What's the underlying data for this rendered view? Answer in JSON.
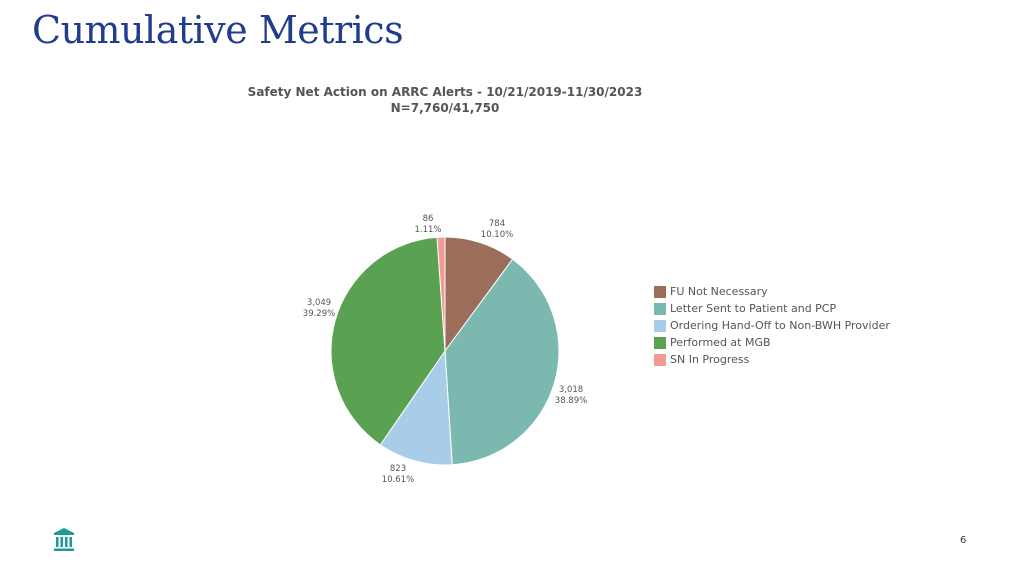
{
  "slide": {
    "title": "Cumulative Metrics",
    "page_number": "6"
  },
  "chart_data": {
    "type": "pie",
    "title": "Safety Net Action on ARRC Alerts - 10/21/2019-11/30/2023",
    "subtitle": "N=7,760/41,750",
    "legend_position": "right",
    "slices": [
      {
        "label": "FU Not Necessary",
        "value": 784,
        "value_label": "784",
        "percent_label": "10.10%",
        "color": "#9a6e5b"
      },
      {
        "label": "Letter Sent to Patient and PCP",
        "value": 3018,
        "value_label": "3,018",
        "percent_label": "38.89%",
        "color": "#7bb8b0"
      },
      {
        "label": "Ordering Hand-Off to Non-BWH Provider",
        "value": 823,
        "value_label": "823",
        "percent_label": "10.61%",
        "color": "#a8cde8"
      },
      {
        "label": "Performed at MGB",
        "value": 3049,
        "value_label": "3,049",
        "percent_label": "39.29%",
        "color": "#5aa152"
      },
      {
        "label": "SN In Progress",
        "value": 86,
        "value_label": "86",
        "percent_label": "1.11%",
        "color": "#f29b96"
      }
    ]
  },
  "colors": {
    "title": "#1f3d8a",
    "logo": "#1a9a9a"
  },
  "logo": {
    "icon": "institution-building-icon"
  }
}
